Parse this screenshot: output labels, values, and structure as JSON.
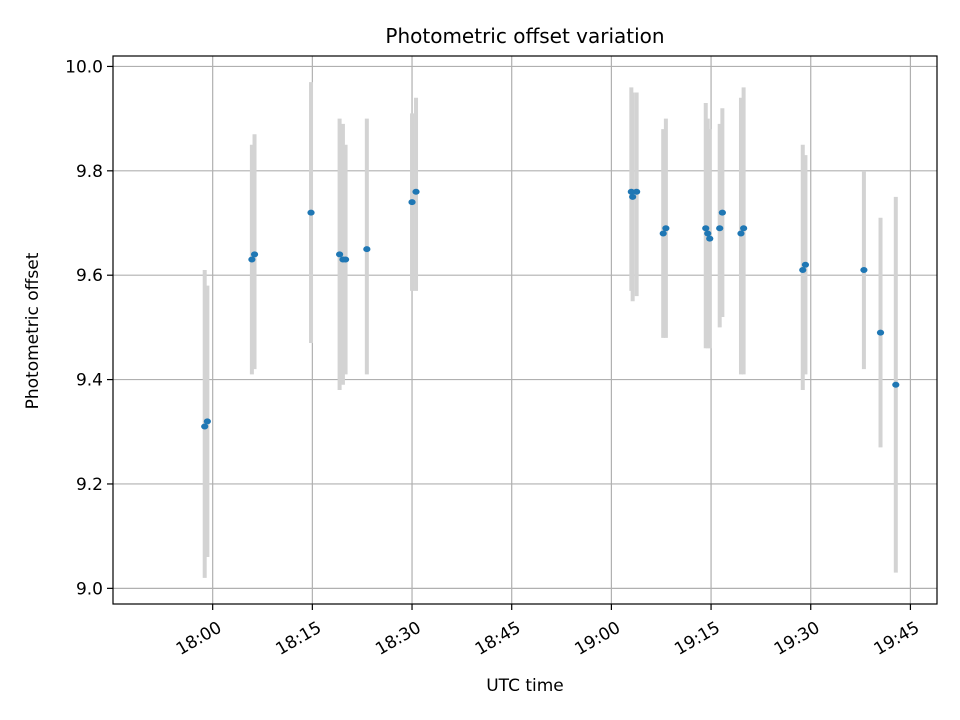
{
  "chart_data": {
    "type": "scatter",
    "title": "Photometric offset variation",
    "xlabel": "UTC time",
    "ylabel": "Photometric offset",
    "xlim": [
      "17:45",
      "19:49"
    ],
    "ylim": [
      8.97,
      10.02
    ],
    "x_ticks": [
      "18:00",
      "18:15",
      "18:30",
      "18:45",
      "19:00",
      "19:15",
      "19:30",
      "19:45"
    ],
    "y_ticks": [
      "9.0",
      "9.2",
      "9.4",
      "9.6",
      "9.8",
      "10.0"
    ],
    "grid": true,
    "colors": {
      "marker": "#1f77b4",
      "errorbar": "#d3d3d3",
      "grid": "#b0b0b0",
      "axes": "#000000"
    },
    "points": [
      {
        "t": "17:58:48",
        "y": 9.31,
        "lo": 9.02,
        "hi": 9.61
      },
      {
        "t": "17:59:12",
        "y": 9.32,
        "lo": 9.06,
        "hi": 9.58
      },
      {
        "t": "18:05:54",
        "y": 9.63,
        "lo": 9.41,
        "hi": 9.85
      },
      {
        "t": "18:06:18",
        "y": 9.64,
        "lo": 9.42,
        "hi": 9.87
      },
      {
        "t": "18:14:48",
        "y": 9.72,
        "lo": 9.47,
        "hi": 9.97
      },
      {
        "t": "18:19:06",
        "y": 9.64,
        "lo": 9.38,
        "hi": 9.9
      },
      {
        "t": "18:19:36",
        "y": 9.63,
        "lo": 9.39,
        "hi": 9.89
      },
      {
        "t": "18:20:00",
        "y": 9.63,
        "lo": 9.41,
        "hi": 9.85
      },
      {
        "t": "18:23:12",
        "y": 9.65,
        "lo": 9.41,
        "hi": 9.9
      },
      {
        "t": "18:30:00",
        "y": 9.74,
        "lo": 9.57,
        "hi": 9.91
      },
      {
        "t": "18:30:36",
        "y": 9.76,
        "lo": 9.57,
        "hi": 9.94
      },
      {
        "t": "19:03:00",
        "y": 9.76,
        "lo": 9.57,
        "hi": 9.96
      },
      {
        "t": "19:03:12",
        "y": 9.75,
        "lo": 9.55,
        "hi": 9.95
      },
      {
        "t": "19:03:48",
        "y": 9.76,
        "lo": 9.56,
        "hi": 9.95
      },
      {
        "t": "19:07:48",
        "y": 9.68,
        "lo": 9.48,
        "hi": 9.88
      },
      {
        "t": "19:08:12",
        "y": 9.69,
        "lo": 9.48,
        "hi": 9.9
      },
      {
        "t": "19:14:12",
        "y": 9.69,
        "lo": 9.46,
        "hi": 9.93
      },
      {
        "t": "19:14:30",
        "y": 9.68,
        "lo": 9.46,
        "hi": 9.9
      },
      {
        "t": "19:14:48",
        "y": 9.67,
        "lo": 9.46,
        "hi": 9.88
      },
      {
        "t": "19:16:18",
        "y": 9.69,
        "lo": 9.5,
        "hi": 9.89
      },
      {
        "t": "19:16:42",
        "y": 9.72,
        "lo": 9.52,
        "hi": 9.92
      },
      {
        "t": "19:19:30",
        "y": 9.68,
        "lo": 9.41,
        "hi": 9.94
      },
      {
        "t": "19:19:54",
        "y": 9.69,
        "lo": 9.41,
        "hi": 9.96
      },
      {
        "t": "19:28:48",
        "y": 9.61,
        "lo": 9.38,
        "hi": 9.85
      },
      {
        "t": "19:29:12",
        "y": 9.62,
        "lo": 9.41,
        "hi": 9.83
      },
      {
        "t": "19:38:00",
        "y": 9.61,
        "lo": 9.42,
        "hi": 9.8
      },
      {
        "t": "19:40:30",
        "y": 9.49,
        "lo": 9.27,
        "hi": 9.71
      },
      {
        "t": "19:42:48",
        "y": 9.39,
        "lo": 9.03,
        "hi": 9.75
      }
    ]
  }
}
